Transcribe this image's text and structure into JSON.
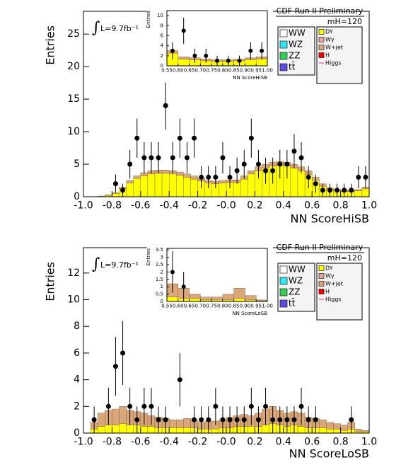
{
  "chart_data": [
    {
      "type": "histogram",
      "title": "CDF Run II Preliminary",
      "annotations": [
        "L=9.7fb⁻¹",
        "mH=120"
      ],
      "xlabel": "NN ScoreHiSB",
      "ylabel": "Entries",
      "bins": [
        -1,
        -0.95,
        -0.9,
        -0.85,
        -0.8,
        -0.75,
        -0.7,
        -0.65,
        -0.6,
        -0.55,
        -0.5,
        -0.45,
        -0.4,
        -0.35,
        -0.3,
        -0.25,
        -0.2,
        -0.15,
        -0.1,
        -0.05,
        0,
        0.05,
        0.1,
        0.15,
        0.2,
        0.25,
        0.3,
        0.35,
        0.4,
        0.45,
        0.5,
        0.55,
        0.6,
        0.65,
        0.7,
        0.75,
        0.8,
        0.85,
        0.9,
        0.95,
        1
      ],
      "xlim": [
        -1,
        1
      ],
      "xticks": [
        {
          "value": -1,
          "label": "-1.0"
        },
        -0.8,
        -0.6,
        -0.4,
        -0.2,
        {
          "value": 0,
          "label": "-0.0"
        },
        0.2,
        0.4,
        0.6,
        0.8,
        {
          "value": 1,
          "label": "1.0"
        }
      ],
      "ylim": [
        0,
        28.5
      ],
      "yticks": [
        0,
        5,
        10,
        15,
        20,
        25
      ],
      "series": [
        {
          "name": "WW",
          "color": "#ffffff"
        },
        {
          "name": "WZ",
          "color": "#33e6f0"
        },
        {
          "name": "ZZ",
          "color": "#33cc55"
        },
        {
          "name": "tt̄",
          "color": "#5c4fe0"
        },
        {
          "name": "DY",
          "color": "#ffff00",
          "values": [
            0,
            0,
            0.1,
            0.2,
            0.5,
            1.2,
            2.1,
            2.8,
            3.2,
            3.5,
            3.6,
            3.6,
            3.5,
            3.3,
            3,
            2.7,
            2.4,
            2.1,
            2,
            2.1,
            2.2,
            2.2,
            2.7,
            3.5,
            4,
            4.4,
            4.7,
            4.8,
            4.7,
            4.4,
            4,
            3.4,
            2.5,
            1.6,
            1.1,
            0.9,
            0.8,
            0.8,
            0.9,
            1.2
          ]
        },
        {
          "name": "Wγ",
          "color": "#e8a6a0"
        },
        {
          "name": "W+jet",
          "color": "#d9a77a",
          "values": [
            0,
            0,
            0,
            0.1,
            0.1,
            0.3,
            0.4,
            0.4,
            0.5,
            0.5,
            0.5,
            0.5,
            0.5,
            0.5,
            0.5,
            0.5,
            0.4,
            0.4,
            0.4,
            0.4,
            0.4,
            0.4,
            0.5,
            0.5,
            0.6,
            0.6,
            0.6,
            0.6,
            0.6,
            0.6,
            0.6,
            0.6,
            0.5,
            0.4,
            0.3,
            0.2,
            0.2,
            0.2,
            0.2,
            0.3
          ]
        },
        {
          "name": "H",
          "color": "#ff0000"
        },
        {
          "name": "Higgs",
          "color": "#e0306a"
        }
      ],
      "data": {
        "values": [
          null,
          null,
          null,
          null,
          2,
          1,
          5,
          9,
          6,
          6,
          6,
          14,
          6,
          9,
          6,
          9,
          3,
          3,
          3,
          6,
          3,
          4,
          5,
          9,
          5,
          4,
          4,
          5,
          5,
          7,
          6,
          3,
          2,
          1,
          1,
          1,
          1,
          1,
          3,
          3
        ],
        "errors": [
          null,
          null,
          null,
          null,
          1.4,
          1,
          2.2,
          3,
          2.4,
          2.4,
          2.4,
          3.7,
          2.4,
          3,
          2.4,
          3,
          1.7,
          1.7,
          1.7,
          2.4,
          1.7,
          2,
          2.2,
          3,
          2.2,
          2,
          2,
          2.2,
          2.2,
          2.6,
          2.4,
          1.7,
          1.4,
          1,
          1,
          1,
          1,
          1,
          1.7,
          1.7
        ]
      }
    },
    {
      "type": "histogram",
      "xlabel": "NN ScoreHiSB",
      "ylabel": "Entries",
      "bins": [
        0.55,
        0.6,
        0.65,
        0.7,
        0.75,
        0.8,
        0.85,
        0.9,
        0.95,
        1
      ],
      "xlim": [
        0.55,
        1
      ],
      "xticks": [
        0.55,
        {
          "value": 0.6,
          "label": "0.60"
        },
        0.65,
        {
          "value": 0.7,
          "label": "0.70"
        },
        0.75,
        {
          "value": 0.8,
          "label": "0.80"
        },
        0.85,
        {
          "value": 0.9,
          "label": "0.90"
        },
        0.95,
        {
          "value": 1,
          "label": "1.00"
        }
      ],
      "ylim": [
        0,
        11
      ],
      "yticks": [
        0,
        2,
        4,
        6,
        8,
        10
      ],
      "series": [
        {
          "color": "#ffff00",
          "values": [
            2.5,
            1.3,
            1.2,
            1,
            0.9,
            0.9,
            1,
            1.2,
            1.4
          ]
        },
        {
          "color": "#d9a77a",
          "values": [
            0.5,
            0.5,
            0.4,
            0.4,
            0.3,
            0.3,
            0.3,
            0.4,
            0.4
          ]
        }
      ],
      "data": {
        "values": [
          3,
          7,
          2,
          2,
          1,
          1,
          1,
          3,
          3
        ],
        "errors": [
          1.7,
          2.6,
          1.4,
          1.4,
          1,
          1,
          1,
          1.7,
          1.7
        ]
      }
    },
    {
      "type": "histogram",
      "title": "CDF Run II Preliminary",
      "annotations": [
        "L=9.7fb⁻¹",
        "mH=120"
      ],
      "xlabel": "NN ScoreLoSB",
      "ylabel": "Entries",
      "bins": [
        -1,
        -0.95,
        -0.9,
        -0.85,
        -0.8,
        -0.75,
        -0.7,
        -0.65,
        -0.6,
        -0.55,
        -0.5,
        -0.45,
        -0.4,
        -0.35,
        -0.3,
        -0.25,
        -0.2,
        -0.15,
        -0.1,
        -0.05,
        0,
        0.05,
        0.1,
        0.15,
        0.2,
        0.25,
        0.3,
        0.35,
        0.4,
        0.45,
        0.5,
        0.55,
        0.6,
        0.65,
        0.7,
        0.75,
        0.8,
        0.85,
        0.9,
        0.95,
        1
      ],
      "xlim": [
        -1,
        1
      ],
      "xticks": [
        {
          "value": -1,
          "label": "-1.0"
        },
        -0.8,
        -0.6,
        -0.4,
        -0.2,
        {
          "value": 0,
          "label": "-0.0"
        },
        0.2,
        0.4,
        0.6,
        0.8,
        {
          "value": 1,
          "label": "1.0"
        }
      ],
      "ylim": [
        0,
        13.9
      ],
      "yticks": [
        0,
        2,
        4,
        6,
        8,
        10,
        12
      ],
      "series": [
        {
          "name": "WW",
          "color": "#ffffff"
        },
        {
          "name": "WZ",
          "color": "#33e6f0"
        },
        {
          "name": "ZZ",
          "color": "#33cc55"
        },
        {
          "name": "tt̄",
          "color": "#5c4fe0"
        },
        {
          "name": "DY",
          "color": "#ffff00",
          "values": [
            0,
            0.3,
            0.5,
            0.6,
            0.6,
            0.7,
            0.6,
            0.6,
            0.5,
            0.5,
            0.4,
            0.4,
            0.4,
            0.4,
            0.4,
            0.4,
            0.3,
            0.3,
            0.3,
            0.4,
            0.4,
            0.5,
            0.5,
            0.5,
            0.5,
            0.6,
            0.7,
            0.6,
            0.5,
            0.6,
            0.5,
            0.4,
            0.4,
            0.4,
            0.3,
            0.3,
            0.2,
            0.3,
            0.1,
            0.1
          ]
        },
        {
          "name": "Wγ",
          "color": "#e8a6a0"
        },
        {
          "name": "W+jet",
          "color": "#d9a77a",
          "values": [
            0,
            0.5,
            1,
            1.1,
            1.2,
            1.3,
            1.1,
            1,
            1,
            0.8,
            0.8,
            0.7,
            0.6,
            0.6,
            0.7,
            0.6,
            0.5,
            0.6,
            0.6,
            0.6,
            0.8,
            0.8,
            0.9,
            0.8,
            1,
            1.2,
            1.3,
            1.1,
            1,
            1,
            1,
            0.8,
            0.7,
            0.6,
            0.5,
            0.4,
            0.4,
            0.5,
            0.2,
            0.1
          ]
        },
        {
          "name": "H",
          "color": "#ff0000"
        },
        {
          "name": "Higgs",
          "color": "#e0306a"
        }
      ],
      "data": {
        "values": [
          null,
          1,
          null,
          2,
          5,
          6,
          2,
          1,
          2,
          2,
          1,
          1,
          null,
          4,
          null,
          1,
          1,
          1,
          2,
          1,
          1,
          1,
          1,
          2,
          1,
          2,
          1,
          1,
          1,
          1,
          2,
          1,
          1,
          null,
          null,
          null,
          null,
          1,
          null,
          null
        ],
        "errors": [
          null,
          1,
          null,
          1.4,
          2.2,
          2.4,
          1.4,
          1,
          1.4,
          1.4,
          1,
          1,
          null,
          2,
          null,
          1,
          1,
          1,
          1.4,
          1,
          1,
          1,
          1,
          1.4,
          1,
          1.4,
          1,
          1,
          1,
          1,
          1.4,
          1,
          1,
          null,
          null,
          null,
          null,
          1,
          null,
          null
        ]
      }
    },
    {
      "type": "histogram",
      "xlabel": "NN ScoreLoSB",
      "ylabel": "Entries",
      "bins": [
        0.55,
        0.6,
        0.65,
        0.7,
        0.75,
        0.8,
        0.85,
        0.9,
        0.95,
        1
      ],
      "xlim": [
        0.55,
        1
      ],
      "xticks": [
        0.55,
        {
          "value": 0.6,
          "label": "0.60"
        },
        0.65,
        {
          "value": 0.7,
          "label": "0.70"
        },
        0.75,
        {
          "value": 0.8,
          "label": "0.80"
        },
        0.85,
        {
          "value": 0.9,
          "label": "0.90"
        },
        0.95,
        {
          "value": 1,
          "label": "1.00"
        }
      ],
      "ylim": [
        0,
        3.6
      ],
      "yticks": [
        0,
        0.5,
        1,
        1.5,
        2,
        2.5,
        3,
        3.5
      ],
      "series": [
        {
          "color": "#ffff00",
          "values": [
            0.3,
            0.2,
            0.2,
            0.1,
            0.1,
            0.1,
            0.2,
            0.1,
            0.05
          ]
        },
        {
          "color": "#d9a77a",
          "values": [
            0.9,
            0.7,
            0.3,
            0.2,
            0.2,
            0.4,
            0.7,
            0.3,
            0.05
          ]
        }
      ],
      "data": {
        "values": [
          2,
          1,
          null,
          null,
          null,
          null,
          null,
          null,
          null
        ],
        "errors": [
          1.4,
          1,
          null,
          null,
          null,
          null,
          null,
          null,
          null
        ]
      }
    }
  ]
}
